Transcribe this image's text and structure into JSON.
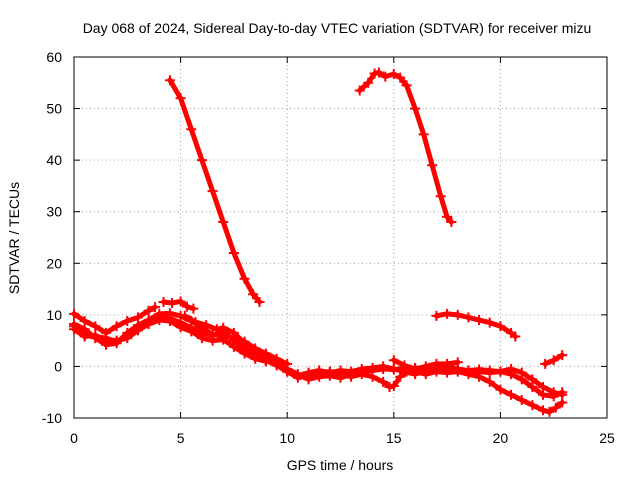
{
  "chart_data": {
    "type": "scatter",
    "title": "Day 068 of 2024, Sidereal Day-to-day VTEC variation (SDTVAR) for receiver mizu",
    "xlabel": "GPS time / hours",
    "ylabel": "SDTVAR / TECUs",
    "xlim": [
      0,
      25
    ],
    "ylim": [
      -10,
      60
    ],
    "xticks": [
      0,
      5,
      10,
      15,
      20,
      25
    ],
    "yticks": [
      -10,
      0,
      10,
      20,
      30,
      40,
      50,
      60
    ],
    "xtick_labels": [
      "0",
      "5",
      "10",
      "15",
      "20",
      "25"
    ],
    "ytick_labels": [
      "-10",
      "0",
      "10",
      "20",
      "30",
      "40",
      "50",
      "60"
    ],
    "grid": true,
    "marker": "plus",
    "color": "#ff0000",
    "series": [
      {
        "name": "track-1",
        "points": [
          [
            4.5,
            55.5
          ],
          [
            5.0,
            52
          ],
          [
            5.5,
            46
          ],
          [
            6.0,
            40
          ],
          [
            6.5,
            34
          ],
          [
            7.0,
            28
          ],
          [
            7.5,
            22
          ],
          [
            8.0,
            17
          ],
          [
            8.4,
            14
          ],
          [
            8.7,
            12.5
          ]
        ]
      },
      {
        "name": "track-2",
        "points": [
          [
            13.4,
            53.5
          ],
          [
            13.8,
            55
          ],
          [
            14.1,
            56.8
          ],
          [
            14.3,
            57
          ],
          [
            14.6,
            56.2
          ],
          [
            15.0,
            56.7
          ],
          [
            15.3,
            56
          ],
          [
            15.6,
            54.5
          ],
          [
            16.0,
            50
          ],
          [
            16.4,
            45
          ],
          [
            16.8,
            39
          ],
          [
            17.2,
            33
          ],
          [
            17.5,
            29
          ],
          [
            17.7,
            28
          ]
        ]
      },
      {
        "name": "track-3",
        "points": [
          [
            0.0,
            10.2
          ],
          [
            0.5,
            8.8
          ],
          [
            1.0,
            7.8
          ],
          [
            1.5,
            6.5
          ],
          [
            2.0,
            7.8
          ],
          [
            2.5,
            8.8
          ],
          [
            3.0,
            9.5
          ],
          [
            3.5,
            10.8
          ],
          [
            3.8,
            11.5
          ]
        ]
      },
      {
        "name": "track-4",
        "points": [
          [
            4.2,
            12.5
          ],
          [
            4.6,
            12.3
          ],
          [
            5.0,
            12.6
          ],
          [
            5.3,
            11.6
          ],
          [
            5.6,
            11.2
          ]
        ]
      },
      {
        "name": "track-5",
        "points": [
          [
            0.0,
            7.8
          ],
          [
            0.5,
            6.2
          ],
          [
            1.0,
            5.8
          ],
          [
            1.5,
            5.5
          ],
          [
            2.0,
            4.8
          ],
          [
            2.5,
            6.0
          ],
          [
            3.0,
            7.2
          ],
          [
            3.5,
            8.6
          ],
          [
            4.0,
            9.5
          ],
          [
            4.5,
            9.3
          ],
          [
            5.0,
            8.5
          ],
          [
            5.5,
            7.5
          ],
          [
            6.0,
            6.5
          ],
          [
            6.5,
            6.0
          ],
          [
            7.0,
            6.8
          ],
          [
            7.5,
            5.0
          ],
          [
            8.0,
            3.5
          ],
          [
            8.5,
            2.0
          ],
          [
            9.0,
            1.0
          ]
        ]
      },
      {
        "name": "track-6",
        "points": [
          [
            0.0,
            8.2
          ],
          [
            0.5,
            7.2
          ],
          [
            1.0,
            5.5
          ],
          [
            1.5,
            4.2
          ],
          [
            2.0,
            4.5
          ],
          [
            2.5,
            6.5
          ],
          [
            3.0,
            8.0
          ],
          [
            3.5,
            9.0
          ],
          [
            4.0,
            10.2
          ],
          [
            4.5,
            10.3
          ],
          [
            5.0,
            9.8
          ],
          [
            5.5,
            8.8
          ],
          [
            6.0,
            7.5
          ],
          [
            6.5,
            6.2
          ],
          [
            7.0,
            6.0
          ],
          [
            7.5,
            5.5
          ],
          [
            8.0,
            4.8
          ],
          [
            8.5,
            3.5
          ],
          [
            9.0,
            2.5
          ],
          [
            9.5,
            1.5
          ],
          [
            10.0,
            0.5
          ]
        ]
      },
      {
        "name": "track-7",
        "points": [
          [
            0.0,
            7.2
          ],
          [
            0.5,
            5.8
          ],
          [
            1.0,
            6.0
          ],
          [
            1.5,
            5.2
          ],
          [
            2.0,
            5.0
          ],
          [
            2.5,
            5.5
          ],
          [
            3.0,
            7.0
          ],
          [
            3.5,
            8.2
          ],
          [
            4.0,
            9.0
          ],
          [
            4.5,
            8.8
          ],
          [
            5.0,
            7.6
          ],
          [
            5.5,
            6.8
          ],
          [
            6.0,
            5.5
          ],
          [
            6.5,
            5.0
          ],
          [
            7.0,
            5.2
          ],
          [
            7.5,
            3.8
          ],
          [
            8.0,
            2.5
          ],
          [
            8.5,
            1.5
          ],
          [
            9.0,
            1.0
          ],
          [
            9.5,
            0.8
          ],
          [
            10.0,
            -0.5
          ],
          [
            10.5,
            -1.5
          ],
          [
            11.0,
            -2.5
          ],
          [
            11.5,
            -2.0
          ],
          [
            12.0,
            -1.8
          ],
          [
            12.5,
            -2.2
          ],
          [
            13.0,
            -1.6
          ],
          [
            13.5,
            -1.0
          ],
          [
            14.0,
            -0.8
          ],
          [
            14.5,
            -0.5
          ],
          [
            15.0,
            -0.6
          ],
          [
            15.5,
            -0.4
          ],
          [
            16.0,
            -0.3
          ],
          [
            16.5,
            -0.5
          ],
          [
            17.0,
            -0.2
          ],
          [
            17.5,
            -0.6
          ],
          [
            18.0,
            -0.8
          ],
          [
            18.5,
            -0.9
          ],
          [
            19.0,
            -1.0
          ],
          [
            19.5,
            -1.2
          ],
          [
            20.0,
            -1.0
          ],
          [
            20.5,
            -1.5
          ],
          [
            21.0,
            -2.5
          ],
          [
            21.5,
            -4.0
          ],
          [
            22.0,
            -5.5
          ],
          [
            22.5,
            -5.8
          ],
          [
            22.9,
            -5.0
          ]
        ]
      },
      {
        "name": "track-8",
        "points": [
          [
            5.2,
            9.8
          ],
          [
            5.7,
            8.6
          ],
          [
            6.2,
            8.0
          ],
          [
            6.7,
            7.2
          ],
          [
            7.0,
            7.5
          ],
          [
            7.5,
            6.5
          ],
          [
            8.0,
            4.5
          ],
          [
            8.5,
            3.0
          ],
          [
            9.0,
            2.0
          ],
          [
            9.5,
            1.0
          ],
          [
            10.0,
            -1.0
          ],
          [
            10.5,
            -2.2
          ],
          [
            11.0,
            -1.8
          ],
          [
            11.5,
            -1.2
          ],
          [
            12.0,
            -1.0
          ],
          [
            12.5,
            -1.5
          ],
          [
            13.0,
            -2.0
          ],
          [
            13.5,
            -1.5
          ],
          [
            14.0,
            -2.0
          ],
          [
            14.5,
            -3.0
          ],
          [
            14.8,
            -4.0
          ],
          [
            15.0,
            -3.8
          ],
          [
            15.3,
            -2.0
          ],
          [
            15.6,
            -1.0
          ],
          [
            16.0,
            -1.0
          ],
          [
            16.5,
            -1.5
          ],
          [
            17.0,
            -1.0
          ],
          [
            17.5,
            -1.2
          ],
          [
            18.0,
            -1.0
          ],
          [
            18.5,
            -1.5
          ],
          [
            19.0,
            -2.0
          ],
          [
            19.5,
            -3.0
          ],
          [
            20.0,
            -4.5
          ],
          [
            20.5,
            -5.5
          ],
          [
            21.0,
            -6.5
          ],
          [
            21.5,
            -7.5
          ],
          [
            22.0,
            -8.5
          ],
          [
            22.3,
            -8.8
          ],
          [
            22.6,
            -8.0
          ],
          [
            22.9,
            -7.0
          ]
        ]
      },
      {
        "name": "track-9",
        "points": [
          [
            9.0,
            1.2
          ],
          [
            9.5,
            0.2
          ],
          [
            10.0,
            -1.0
          ],
          [
            10.5,
            -1.8
          ],
          [
            11.0,
            -1.2
          ],
          [
            11.5,
            -0.8
          ],
          [
            12.0,
            -1.2
          ],
          [
            12.5,
            -0.8
          ],
          [
            13.0,
            -1.0
          ],
          [
            13.5,
            -0.5
          ],
          [
            14.0,
            -0.3
          ],
          [
            14.5,
            0.0
          ],
          [
            15.0,
            -0.5
          ],
          [
            15.5,
            -1.0
          ],
          [
            16.0,
            -1.5
          ],
          [
            16.5,
            -0.8
          ],
          [
            17.0,
            -0.5
          ],
          [
            17.5,
            0.0
          ],
          [
            18.0,
            -0.5
          ],
          [
            18.5,
            -0.8
          ],
          [
            19.0,
            -0.6
          ],
          [
            19.5,
            -0.8
          ],
          [
            20.0,
            -1.0
          ],
          [
            20.5,
            -0.5
          ],
          [
            21.0,
            -1.2
          ],
          [
            21.5,
            -2.5
          ],
          [
            22.0,
            -4.0
          ],
          [
            22.5,
            -5.0
          ],
          [
            22.9,
            -5.5
          ]
        ]
      },
      {
        "name": "track-10",
        "points": [
          [
            15.0,
            1.2
          ],
          [
            15.5,
            0.2
          ],
          [
            16.0,
            -0.5
          ],
          [
            16.5,
            0.0
          ],
          [
            17.0,
            0.5
          ],
          [
            17.5,
            0.5
          ],
          [
            18.0,
            0.8
          ]
        ]
      },
      {
        "name": "track-11",
        "points": [
          [
            17.0,
            9.8
          ],
          [
            17.5,
            10.2
          ],
          [
            18.0,
            10.0
          ],
          [
            18.5,
            9.5
          ],
          [
            19.0,
            9.0
          ],
          [
            19.5,
            8.5
          ],
          [
            20.0,
            7.8
          ],
          [
            20.5,
            6.5
          ],
          [
            20.7,
            5.8
          ]
        ]
      },
      {
        "name": "track-12",
        "points": [
          [
            22.1,
            0.5
          ],
          [
            22.5,
            1.2
          ],
          [
            22.9,
            2.2
          ]
        ]
      }
    ]
  }
}
